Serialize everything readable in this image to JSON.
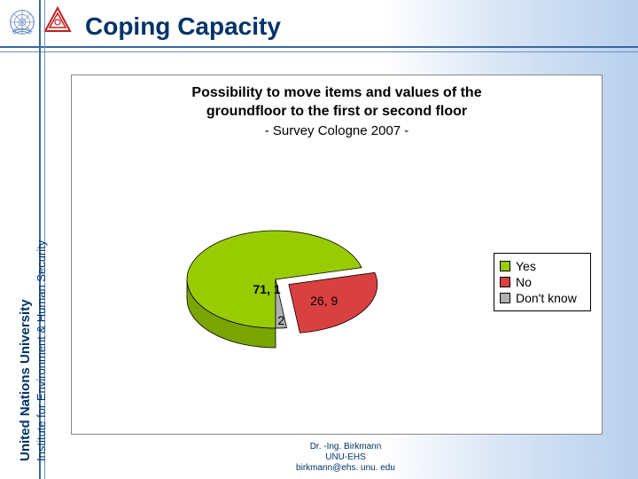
{
  "page": {
    "title": "Coping Capacity",
    "title_color": "#003366",
    "title_fontsize": 28,
    "background_gradient": [
      "#ffffff",
      "#b8d0ed"
    ],
    "rule_color": "#3a66a0"
  },
  "sidebar": {
    "line1": "United Nations University",
    "line2": "Institute for Environment & Human Security",
    "color": "#003366"
  },
  "logos": {
    "un": {
      "color": "#6d8fc6",
      "name": "un-emblem-icon"
    },
    "triangle": {
      "color": "#c22020",
      "name": "unu-ehs-triangle-icon"
    }
  },
  "chart": {
    "type": "pie",
    "title_line1": "Possibility to move items and values of the",
    "title_line2": "groundfloor to the first or second floor",
    "subtitle": "- Survey Cologne 2007 -",
    "title_fontsize": 16,
    "subtitle_fontsize": 15,
    "background_color": "#ffffff",
    "border_color": "#888888",
    "is_3d": true,
    "explode_index": 1,
    "start_angle_deg": 90,
    "slices": [
      {
        "label": "Yes",
        "value": 71.1,
        "display": "71, 1",
        "color": "#99cc00",
        "side_color": "#7aa500"
      },
      {
        "label": "No",
        "value": 26.9,
        "display": "26, 9",
        "color": "#d94040",
        "side_color": "#a53030"
      },
      {
        "label": "Don't know",
        "value": 2.0,
        "display": "2",
        "color": "#b0b0b0",
        "side_color": "#888888"
      }
    ],
    "slice_border_color": "#000000",
    "label_fontsize": 14,
    "legend": {
      "border_color": "#000000",
      "background": "#ffffff",
      "fontsize": 14,
      "position": "right-middle"
    }
  },
  "footer": {
    "line1": "Dr. -Ing. Birkmann",
    "line2": "UNU-EHS",
    "line3": "birkmann@ehs. unu. edu",
    "color": "#003366",
    "fontsize": 10
  }
}
